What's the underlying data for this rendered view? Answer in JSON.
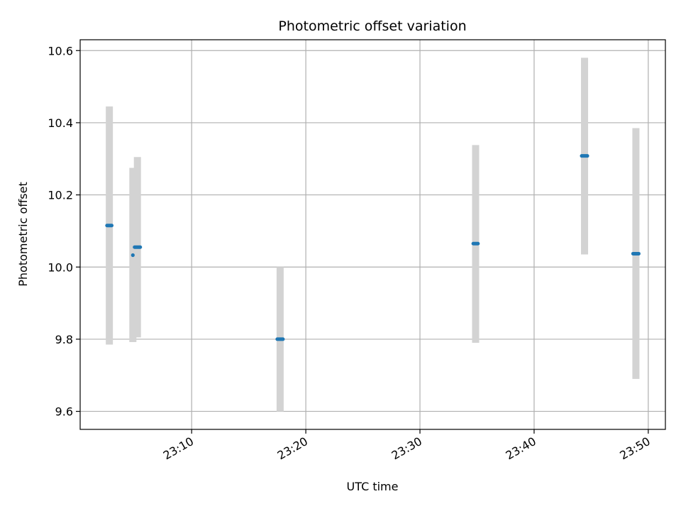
{
  "chart_data": {
    "type": "scatter",
    "title": "Photometric offset variation",
    "xlabel": "UTC time",
    "ylabel": "Photometric offset",
    "x_is_time": true,
    "xlim": [
      "23:00:14",
      "23:51:30"
    ],
    "ylim": [
      9.55,
      10.63
    ],
    "x_ticks": [
      "23:10",
      "23:20",
      "23:30",
      "23:40",
      "23:50"
    ],
    "y_ticks": [
      "9.6",
      "9.8",
      "10.0",
      "10.2",
      "10.4",
      "10.6"
    ],
    "grid": true,
    "colors": {
      "point": "#1f77b4",
      "error_bar": "#d3d3d3",
      "grid": "#b0b0b0",
      "axes": "#000000"
    },
    "series": [
      {
        "points": [
          {
            "x_start": "23:02:35",
            "x_end": "23:03:00",
            "y": 10.115,
            "y_low": 9.785,
            "y_high": 10.445
          },
          {
            "x_start": "23:04:50",
            "x_end": "23:04:52",
            "y": 10.033,
            "y_low": 9.792,
            "y_high": 10.275
          },
          {
            "x_start": "23:05:00",
            "x_end": "23:05:30",
            "y": 10.055,
            "y_low": 9.805,
            "y_high": 10.305
          },
          {
            "x_start": "23:17:30",
            "x_end": "23:18:00",
            "y": 9.8,
            "y_low": 9.6,
            "y_high": 10.0
          },
          {
            "x_start": "23:34:40",
            "x_end": "23:35:05",
            "y": 10.065,
            "y_low": 9.79,
            "y_high": 10.338
          },
          {
            "x_start": "23:44:10",
            "x_end": "23:44:40",
            "y": 10.308,
            "y_low": 10.035,
            "y_high": 10.58
          },
          {
            "x_start": "23:48:40",
            "x_end": "23:49:10",
            "y": 10.037,
            "y_low": 9.69,
            "y_high": 10.385
          }
        ]
      }
    ]
  }
}
